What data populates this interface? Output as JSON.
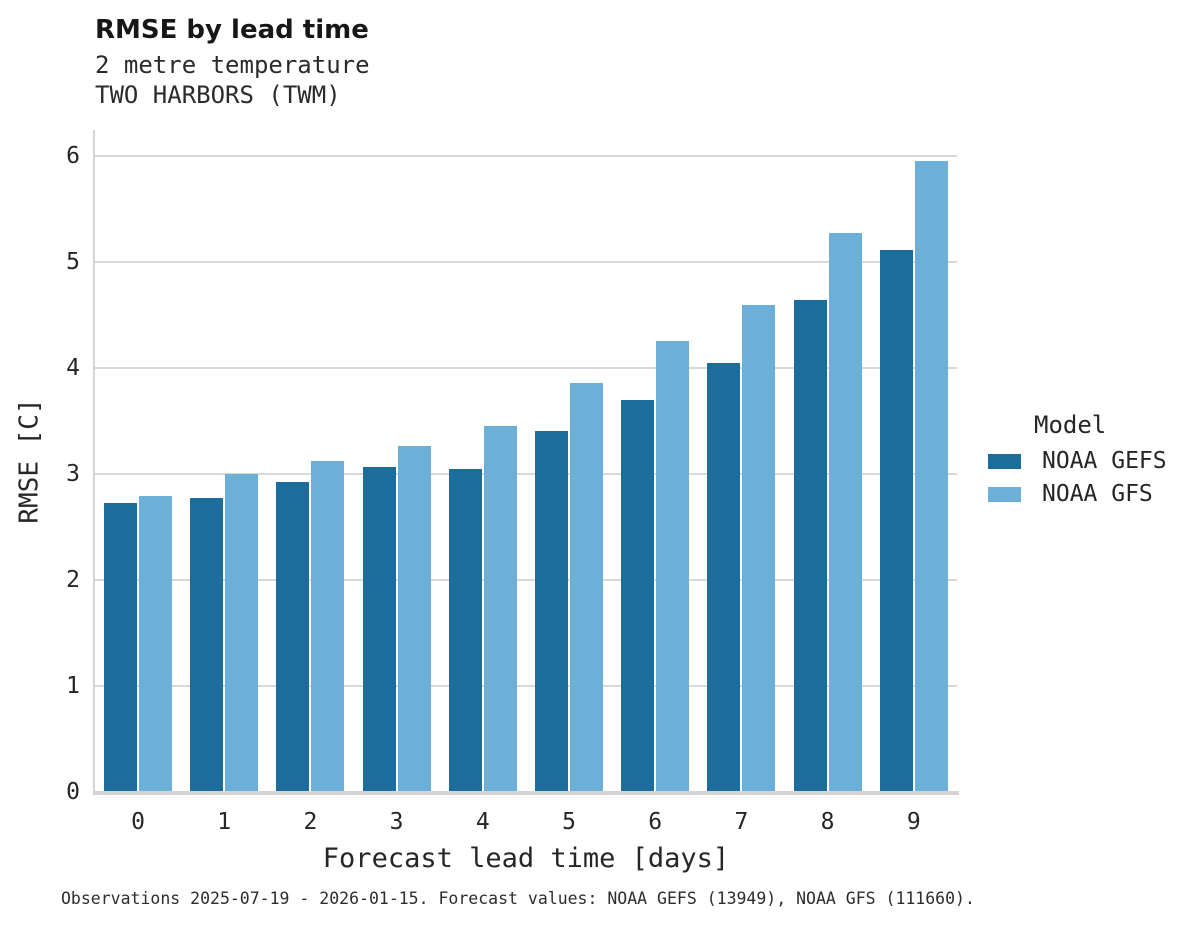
{
  "page": {
    "background": "#ffffff"
  },
  "header": {
    "title": "RMSE by lead time",
    "subtitle_line1": "2 metre temperature",
    "subtitle_line2": "TWO HARBORS (TWM)"
  },
  "footer": {
    "caption": "Observations 2025-07-19 - 2026-01-15. Forecast values: NOAA GEFS (13949), NOAA GFS (111660)."
  },
  "chart_data": {
    "type": "bar",
    "title": "RMSE by lead time",
    "subtitle": [
      "2 metre temperature",
      "TWO HARBORS (TWM)"
    ],
    "xlabel": "Forecast lead time [days]",
    "ylabel": "RMSE [C]",
    "categories": [
      "0",
      "1",
      "2",
      "3",
      "4",
      "5",
      "6",
      "7",
      "8",
      "9"
    ],
    "series": [
      {
        "name": "NOAA GEFS",
        "color": "#1c6d9b",
        "values": [
          2.73,
          2.77,
          2.92,
          3.07,
          3.05,
          3.41,
          3.7,
          4.05,
          4.64,
          5.11
        ]
      },
      {
        "name": "NOAA GFS",
        "color": "#6cb0d8",
        "values": [
          2.79,
          3.0,
          3.12,
          3.26,
          3.45,
          3.86,
          4.25,
          4.59,
          5.27,
          5.95
        ]
      }
    ],
    "ylim": [
      0,
      6
    ],
    "yticks": [
      0,
      1,
      2,
      3,
      4,
      5,
      6
    ],
    "grid": "horizontal",
    "legend": {
      "title": "Model",
      "position": "right",
      "entries": [
        "NOAA GEFS",
        "NOAA GFS"
      ]
    },
    "colors": {
      "noaa_gefs": "#1c6d9b",
      "noaa_gfs": "#6cb0d8",
      "gridline": "#d9d9d9",
      "axis": "#d4d4d4"
    }
  }
}
